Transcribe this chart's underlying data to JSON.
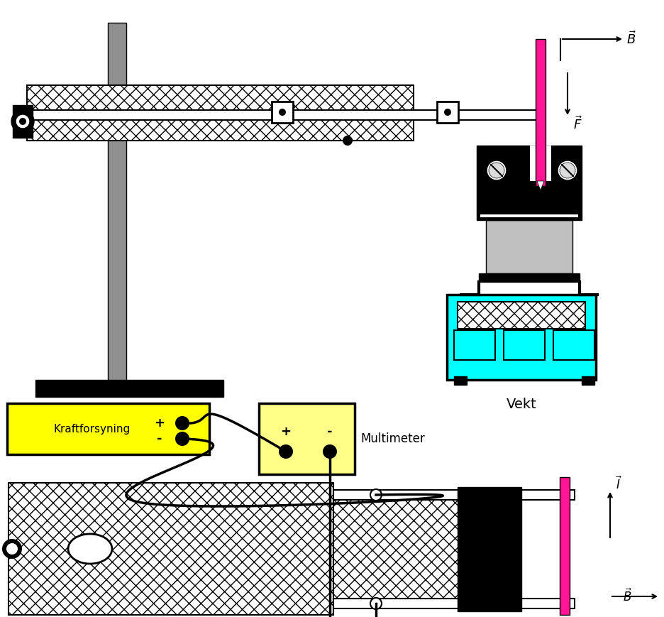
{
  "bg_color": "#ffffff",
  "pink_color": "#FF1493",
  "cyan_color": "#00FFFF",
  "yellow_color": "#FFFF00",
  "light_yellow_color": "#FFFFE0",
  "gray_color": "#909090",
  "light_gray_color": "#C0C0C0",
  "black": "#000000",
  "white": "#ffffff",
  "checker_color": "#888888",
  "label_vekt": "Vekt",
  "label_kraftforsyning": "Kraftforsyning",
  "label_multimeter": "Multimeter"
}
